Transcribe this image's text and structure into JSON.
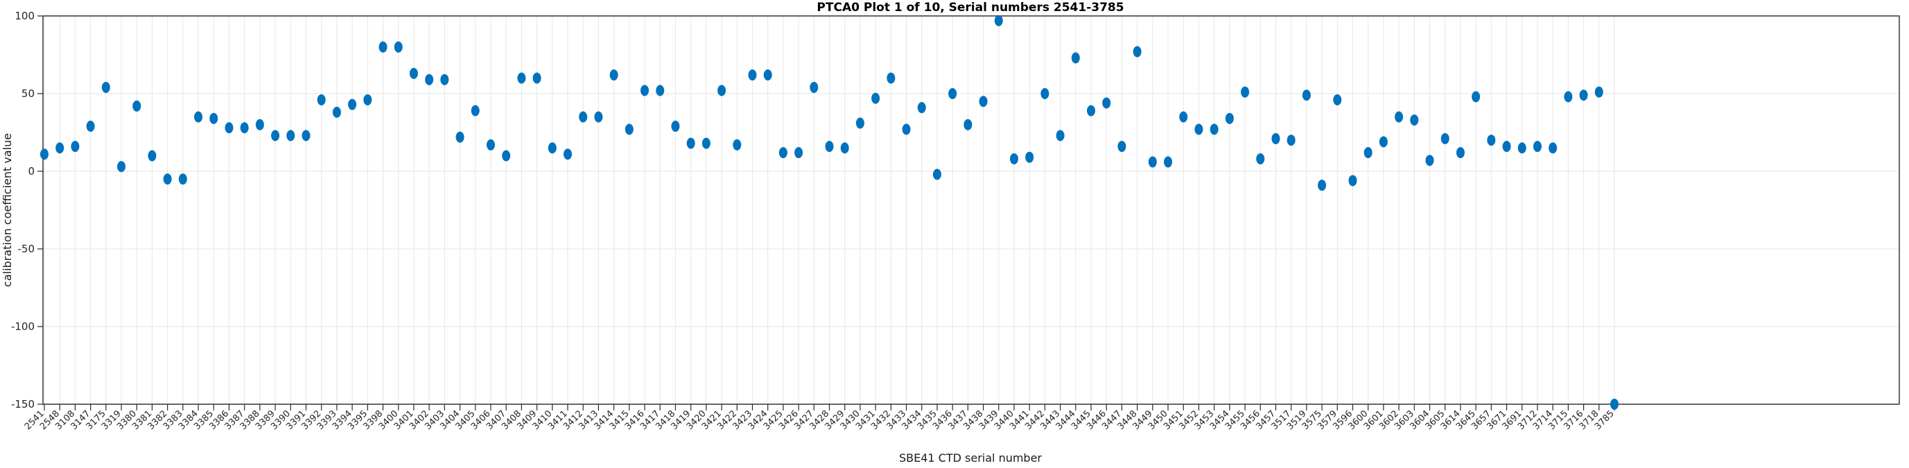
{
  "figure": {
    "title": "PTCA0 Plot 1 of 10, Serial numbers 2541-3785",
    "xlabel": "SBE41 CTD serial number",
    "ylabel": "calibration coefficient value"
  },
  "colors": {
    "marker": "#0072BD",
    "grid": "#e6e6e6",
    "axis": "#262626",
    "background": "#ffffff"
  },
  "chart_data": {
    "type": "scatter",
    "title": "PTCA0 Plot 1 of 10, Serial numbers 2541-3785",
    "xlabel": "SBE41 CTD serial number",
    "ylabel": "calibration coefficient value",
    "ylim": [
      -150,
      100
    ],
    "yticks": [
      100,
      50,
      0,
      -50,
      -100,
      -150
    ],
    "grid": true,
    "legend": "none",
    "marker": "filled-circle",
    "marker_color": "#0072BD",
    "categories": [
      "2541",
      "2548",
      "3108",
      "3147",
      "3175",
      "3319",
      "3380",
      "3381",
      "3382",
      "3383",
      "3384",
      "3385",
      "3386",
      "3387",
      "3388",
      "3389",
      "3390",
      "3391",
      "3392",
      "3393",
      "3394",
      "3395",
      "3398",
      "3400",
      "3401",
      "3402",
      "3403",
      "3404",
      "3405",
      "3406",
      "3407",
      "3408",
      "3409",
      "3410",
      "3411",
      "3412",
      "3413",
      "3414",
      "3415",
      "3416",
      "3417",
      "3418",
      "3419",
      "3420",
      "3421",
      "3422",
      "3423",
      "3424",
      "3425",
      "3426",
      "3427",
      "3428",
      "3429",
      "3430",
      "3431",
      "3432",
      "3433",
      "3434",
      "3435",
      "3436",
      "3437",
      "3438",
      "3439",
      "3440",
      "3441",
      "3442",
      "3443",
      "3444",
      "3445",
      "3446",
      "3447",
      "3448",
      "3449",
      "3450",
      "3451",
      "3452",
      "3453",
      "3454",
      "3455",
      "3456",
      "3457",
      "3517",
      "3519",
      "3575",
      "3579",
      "3596",
      "3600",
      "3601",
      "3602",
      "3603",
      "3604",
      "3605",
      "3614",
      "3645",
      "3657",
      "3671",
      "3691",
      "3712",
      "3714",
      "3715",
      "3716",
      "3718",
      "3785"
    ],
    "values": [
      11,
      15,
      16,
      29,
      54,
      3,
      42,
      10,
      -5,
      -5,
      35,
      34,
      28,
      28,
      30,
      23,
      23,
      23,
      46,
      38,
      43,
      46,
      80,
      80,
      63,
      59,
      59,
      22,
      39,
      17,
      10,
      60,
      60,
      15,
      11,
      35,
      35,
      62,
      27,
      52,
      52,
      29,
      18,
      18,
      52,
      17,
      62,
      62,
      12,
      12,
      54,
      16,
      15,
      31,
      47,
      60,
      27,
      41,
      -2,
      50,
      30,
      45,
      97,
      8,
      9,
      50,
      23,
      73,
      39,
      44,
      16,
      77,
      6,
      6,
      35,
      27,
      27,
      34,
      51,
      8,
      21,
      20,
      49,
      -9,
      46,
      -6,
      12,
      19,
      35,
      33,
      7,
      21,
      12,
      48,
      20,
      16,
      15,
      16,
      15,
      48,
      49,
      51,
      -150
    ]
  }
}
